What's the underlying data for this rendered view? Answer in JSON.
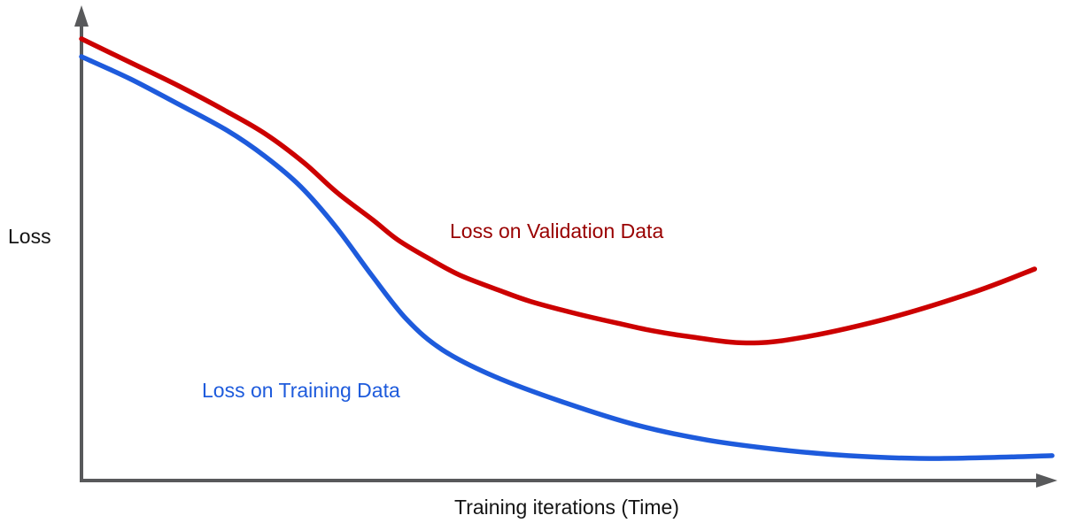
{
  "chart_data": {
    "type": "line",
    "title": "",
    "xlabel": "Training iterations (Time)",
    "ylabel": "Loss",
    "grid": false,
    "legend_position": "inline-annotations",
    "axes_have_tick_labels": false,
    "axis_color": "#58595b",
    "text_color": "#141414",
    "xlim": [
      0,
      1
    ],
    "ylim": [
      0,
      1
    ],
    "series": [
      {
        "name": "Loss on Validation Data",
        "color": "#cc0000",
        "label_color": "#990000",
        "points": [
          [
            0.0,
            0.94
          ],
          [
            0.05,
            0.89
          ],
          [
            0.1,
            0.84
          ],
          [
            0.15,
            0.785
          ],
          [
            0.19,
            0.737
          ],
          [
            0.23,
            0.675
          ],
          [
            0.262,
            0.615
          ],
          [
            0.3,
            0.555
          ],
          [
            0.326,
            0.512
          ],
          [
            0.36,
            0.47
          ],
          [
            0.39,
            0.437
          ],
          [
            0.43,
            0.405
          ],
          [
            0.463,
            0.381
          ],
          [
            0.51,
            0.355
          ],
          [
            0.554,
            0.334
          ],
          [
            0.59,
            0.318
          ],
          [
            0.627,
            0.306
          ],
          [
            0.681,
            0.293
          ],
          [
            0.736,
            0.302
          ],
          [
            0.827,
            0.343
          ],
          [
            0.918,
            0.4
          ],
          [
            0.982,
            0.45
          ]
        ]
      },
      {
        "name": "Loss on Training Data",
        "color": "#1e5bdc",
        "label_color": "#1e5bdc",
        "points": [
          [
            0.0,
            0.902
          ],
          [
            0.05,
            0.855
          ],
          [
            0.098,
            0.803
          ],
          [
            0.15,
            0.745
          ],
          [
            0.189,
            0.69
          ],
          [
            0.226,
            0.625
          ],
          [
            0.262,
            0.54
          ],
          [
            0.299,
            0.437
          ],
          [
            0.335,
            0.343
          ],
          [
            0.372,
            0.278
          ],
          [
            0.426,
            0.221
          ],
          [
            0.499,
            0.165
          ],
          [
            0.572,
            0.118
          ],
          [
            0.645,
            0.086
          ],
          [
            0.718,
            0.066
          ],
          [
            0.79,
            0.053
          ],
          [
            0.863,
            0.047
          ],
          [
            0.936,
            0.049
          ],
          [
            1.0,
            0.053
          ]
        ]
      }
    ]
  }
}
